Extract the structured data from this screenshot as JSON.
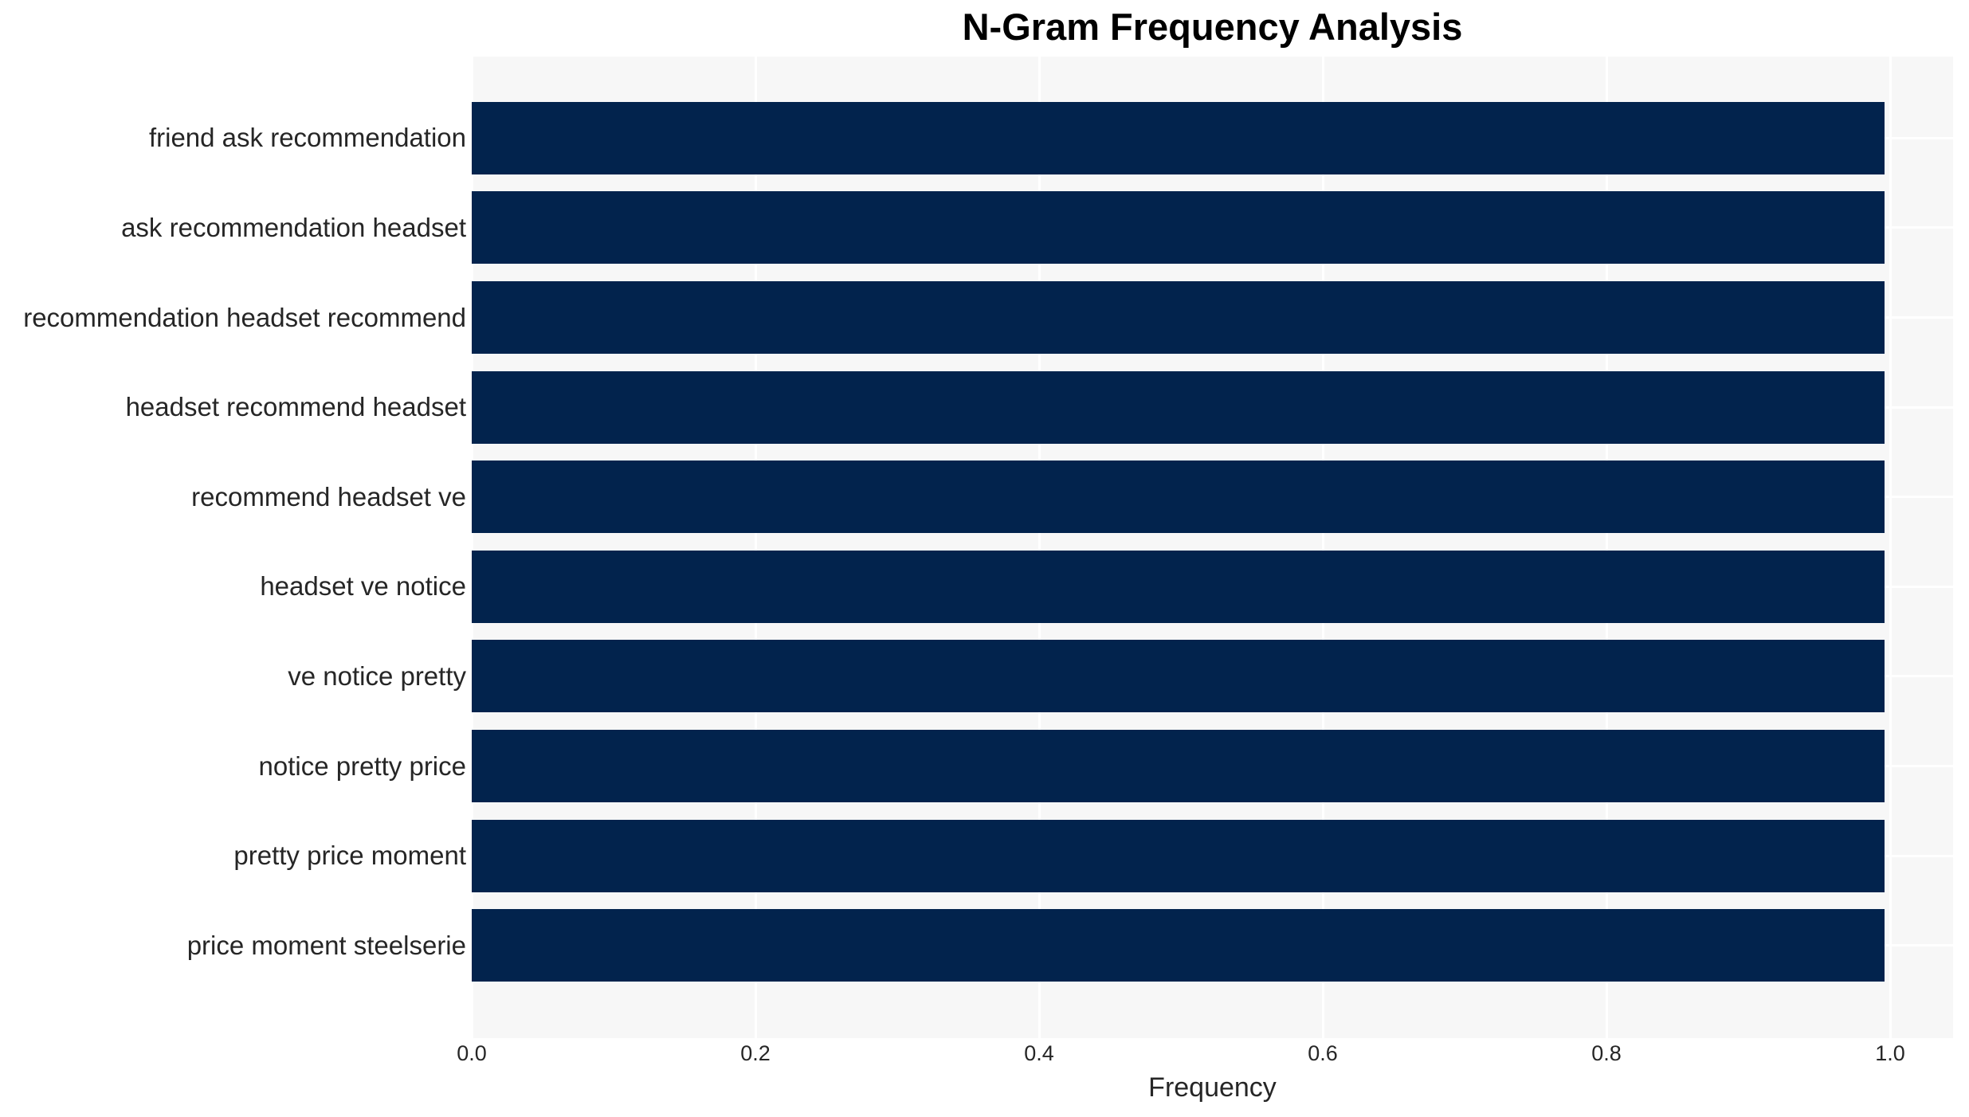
{
  "chart_data": {
    "type": "bar",
    "orientation": "horizontal",
    "title": "N-Gram Frequency Analysis",
    "xlabel": "Frequency",
    "ylabel": "",
    "categories": [
      "friend ask recommendation",
      "ask recommendation headset",
      "recommendation headset recommend",
      "headset recommend headset",
      "recommend headset ve",
      "headset ve notice",
      "ve notice pretty",
      "notice pretty price",
      "pretty price moment",
      "price moment steelserie"
    ],
    "values": [
      1.0,
      1.0,
      1.0,
      1.0,
      1.0,
      1.0,
      1.0,
      1.0,
      1.0,
      1.0
    ],
    "x_ticks": [
      "0.0",
      "0.2",
      "0.4",
      "0.6",
      "0.8",
      "1.0"
    ],
    "x_tick_values": [
      0.0,
      0.2,
      0.4,
      0.6,
      0.8,
      1.0
    ],
    "xlim": [
      0,
      1.044
    ],
    "grid": "white gridlines on light panel, vertical at x ticks and horizontal at bar centers",
    "legend": "none",
    "colors": {
      "bar": "#02234d",
      "plot_background": "#f7f7f7",
      "gridline": "#ffffff",
      "title_text": "#000000",
      "axis_text": "#262626"
    }
  }
}
